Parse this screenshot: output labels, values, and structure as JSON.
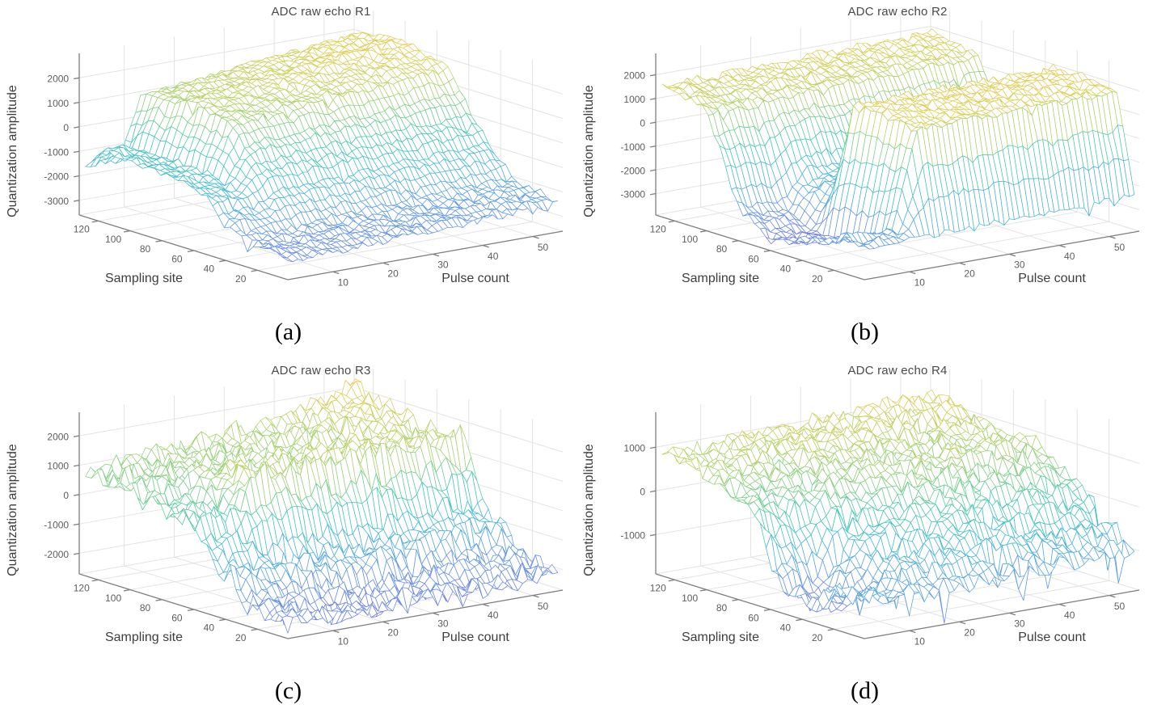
{
  "figure": {
    "background": "#ffffff"
  },
  "captions": [
    "(a)",
    "(b)",
    "(c)",
    "(d)"
  ],
  "style": {
    "colors": {
      "background": "#ffffff",
      "grid": "#e3e3e3",
      "axis": "#7e7e7e",
      "tick_text": "#5d5d5d",
      "title_text": "#4a4a4a",
      "label_text": "#3d3d3d",
      "mesh_face": "#ffffff"
    },
    "colormap_stops": [
      [
        0.0,
        "#7b74dc"
      ],
      [
        0.12,
        "#6b8ee8"
      ],
      [
        0.25,
        "#58a8e2"
      ],
      [
        0.38,
        "#45bdd2"
      ],
      [
        0.5,
        "#48c9ae"
      ],
      [
        0.62,
        "#7ed08a"
      ],
      [
        0.74,
        "#b5d269"
      ],
      [
        0.84,
        "#ddd05b"
      ],
      [
        0.92,
        "#eec653"
      ],
      [
        1.0,
        "#f8ee3e"
      ]
    ]
  },
  "chart_data": [
    {
      "type": "mesh3d",
      "title": "ADC raw echo R1",
      "xlabel": "Pulse count",
      "ylabel": "Sampling site",
      "zlabel": "Quantization amplitude",
      "x_range": [
        1,
        56
      ],
      "y_range": [
        1,
        132
      ],
      "z_range": [
        -3600,
        3000
      ],
      "color_range": [
        -3600,
        3000
      ],
      "x_ticks": [
        10,
        20,
        30,
        40,
        50
      ],
      "y_ticks": [
        20,
        40,
        60,
        80,
        100,
        120
      ],
      "z_ticks": [
        -3000,
        -2000,
        -1000,
        0,
        1000,
        2000
      ],
      "grid": true,
      "surface": {
        "pulse_knots": [
          1,
          8,
          12,
          32,
          55
        ],
        "site_knots": [
          1,
          30,
          52,
          70,
          95,
          118,
          128
        ],
        "z_control": [
          [
            -2800,
            -2800,
            -2750,
            -2600,
            -2400
          ],
          [
            -2500,
            -2500,
            -2400,
            -2200,
            -2000
          ],
          [
            -1300,
            -1350,
            -600,
            -400,
            -200
          ],
          [
            -900,
            -1000,
            900,
            1300,
            1700
          ],
          [
            -800,
            -900,
            1300,
            1800,
            2300
          ],
          [
            -600,
            -800,
            1100,
            1600,
            2100
          ],
          [
            -1600,
            -1500,
            900,
            1400,
            1900
          ]
        ],
        "noise_amp": 230,
        "spike_amp": 350,
        "seed": 3
      }
    },
    {
      "type": "mesh3d",
      "title": "ADC raw echo R2",
      "xlabel": "Pulse count",
      "ylabel": "Sampling site",
      "zlabel": "Quantization amplitude",
      "x_range": [
        1,
        56
      ],
      "y_range": [
        1,
        132
      ],
      "z_range": [
        -3900,
        2900
      ],
      "color_range": [
        -3900,
        2900
      ],
      "x_ticks": [
        10,
        20,
        30,
        40,
        50
      ],
      "y_ticks": [
        20,
        40,
        60,
        80,
        100,
        120
      ],
      "z_ticks": [
        -3000,
        -2000,
        -1000,
        0,
        1000,
        2000
      ],
      "grid": true,
      "surface": {
        "pulse_knots": [
          1,
          10,
          15,
          35,
          55
        ],
        "site_knots": [
          1,
          12,
          30,
          52,
          62,
          80,
          100,
          128
        ],
        "z_control": [
          [
            -2600,
            -2550,
            -2500,
            -2400,
            -2300
          ],
          [
            -2300,
            -2350,
            1700,
            1750,
            1800
          ],
          [
            -2900,
            -3100,
            1900,
            1950,
            2000
          ],
          [
            -3400,
            -3550,
            1800,
            1850,
            1900
          ],
          [
            -3300,
            -3450,
            -1900,
            -1850,
            -1800
          ],
          [
            -2500,
            -2700,
            -1500,
            -1400,
            -1300
          ],
          [
            1250,
            1150,
            1350,
            1450,
            1550
          ],
          [
            1650,
            1550,
            1650,
            1750,
            1850
          ]
        ],
        "noise_amp": 260,
        "spike_amp": 450,
        "seed": 7
      }
    },
    {
      "type": "mesh3d",
      "title": "ADC raw echo R3",
      "xlabel": "Pulse count",
      "ylabel": "Sampling site",
      "zlabel": "Quantization amplitude",
      "x_range": [
        1,
        56
      ],
      "y_range": [
        1,
        132
      ],
      "z_range": [
        -2700,
        2800
      ],
      "color_range": [
        -2700,
        2800
      ],
      "x_ticks": [
        10,
        20,
        30,
        40,
        50
      ],
      "y_ticks": [
        20,
        40,
        60,
        80,
        100,
        120
      ],
      "z_ticks": [
        -2000,
        -1000,
        0,
        1000,
        2000
      ],
      "grid": true,
      "surface": {
        "pulse_knots": [
          1,
          8,
          13,
          35,
          55
        ],
        "site_knots": [
          1,
          25,
          48,
          58,
          78,
          104,
          128
        ],
        "z_control": [
          [
            -2200,
            -2250,
            -2300,
            -2250,
            -2100
          ],
          [
            -1900,
            -2000,
            -2100,
            -2000,
            -1800
          ],
          [
            -800,
            -900,
            -700,
            -600,
            -500
          ],
          [
            200,
            100,
            1400,
            1450,
            1500
          ],
          [
            300,
            200,
            1200,
            1250,
            1300
          ],
          [
            700,
            800,
            900,
            1100,
            1700
          ],
          [
            900,
            1000,
            1100,
            1400,
            2200
          ]
        ],
        "noise_amp": 600,
        "spike_amp": 700,
        "seed": 13
      }
    },
    {
      "type": "mesh3d",
      "title": "ADC raw echo R4",
      "xlabel": "Pulse count",
      "ylabel": "Sampling site",
      "zlabel": "Quantization amplitude",
      "x_range": [
        1,
        56
      ],
      "y_range": [
        1,
        132
      ],
      "z_range": [
        -1900,
        1800
      ],
      "color_range": [
        -1900,
        1800
      ],
      "x_ticks": [
        10,
        20,
        30,
        40,
        50
      ],
      "y_ticks": [
        20,
        40,
        60,
        80,
        100,
        120
      ],
      "z_ticks": [
        -1000,
        0,
        1000
      ],
      "grid": true,
      "surface": {
        "pulse_knots": [
          1,
          8,
          14,
          30,
          55
        ],
        "site_knots": [
          1,
          22,
          40,
          55,
          72,
          100,
          128
        ],
        "z_control": [
          [
            -950,
            -1000,
            -1050,
            -1000,
            -900
          ],
          [
            -1100,
            -1250,
            -900,
            -500,
            -400
          ],
          [
            -1500,
            -1700,
            -700,
            200,
            300
          ],
          [
            -1200,
            -1400,
            -300,
            500,
            600
          ],
          [
            300,
            200,
            500,
            700,
            800
          ],
          [
            800,
            700,
            800,
            900,
            1000
          ],
          [
            900,
            850,
            950,
            1050,
            1150
          ]
        ],
        "noise_amp": 330,
        "spike_amp": 900,
        "seed": 21
      }
    }
  ]
}
